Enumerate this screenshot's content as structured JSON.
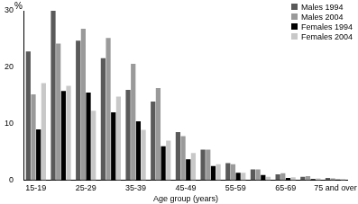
{
  "chart_data": {
    "type": "bar",
    "ylabel": "%",
    "xlabel": "Age group (years)",
    "categories": [
      "15-19",
      null,
      "25-29",
      null,
      "35-39",
      null,
      "45-49",
      null,
      "55-59",
      null,
      "65-69",
      null,
      "75 and over"
    ],
    "series": [
      {
        "name": "Males 1994",
        "color": "#5a5a5a",
        "values": [
          22.8,
          30,
          24.7,
          21.6,
          16.0,
          13.9,
          8.5,
          5.4,
          3.0,
          1.9,
          1.0,
          0.6,
          0.4
        ]
      },
      {
        "name": "Males 2004",
        "color": "#9a9a9a",
        "values": [
          15.2,
          24.2,
          26.8,
          25.2,
          20.6,
          16.3,
          7.8,
          5.4,
          2.8,
          1.9,
          1.2,
          0.7,
          0.3
        ]
      },
      {
        "name": "Females 1994",
        "color": "#000000",
        "values": [
          9.0,
          15.8,
          15.5,
          12.0,
          10.4,
          6.0,
          3.7,
          2.5,
          1.3,
          0.9,
          0.4,
          0.2,
          0.1
        ]
      },
      {
        "name": "Females 2004",
        "color": "#c8c8c8",
        "values": [
          17.2,
          16.7,
          12.3,
          14.8,
          8.9,
          7.0,
          4.8,
          2.8,
          1.3,
          0.6,
          0.5,
          0.3,
          0.2
        ]
      }
    ],
    "ylim": [
      0,
      30
    ],
    "yticks": [
      0,
      10,
      20,
      30
    ],
    "grid": false,
    "legend": "upper right"
  }
}
